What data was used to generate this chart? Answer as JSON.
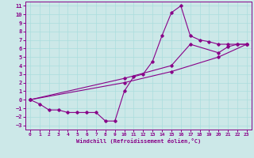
{
  "xlabel": "Windchill (Refroidissement éolien,°C)",
  "xlim": [
    -0.5,
    23.5
  ],
  "ylim": [
    -3.5,
    11.5
  ],
  "xticks": [
    0,
    1,
    2,
    3,
    4,
    5,
    6,
    7,
    8,
    9,
    10,
    11,
    12,
    13,
    14,
    15,
    16,
    17,
    18,
    19,
    20,
    21,
    22,
    23
  ],
  "yticks": [
    11,
    10,
    9,
    8,
    7,
    6,
    5,
    4,
    3,
    2,
    1,
    0,
    -1,
    -2,
    -3
  ],
  "bg_color": "#cce8e8",
  "line_color": "#880088",
  "grid_color": "#aadddd",
  "line1_x": [
    0,
    1,
    2,
    3,
    4,
    5,
    6,
    7,
    8,
    9,
    10,
    11,
    12,
    13,
    14,
    15,
    16,
    17,
    18,
    19,
    20,
    21,
    22,
    23
  ],
  "line1_y": [
    0,
    -0.5,
    -1.2,
    -1.2,
    -1.5,
    -1.5,
    -1.5,
    -1.5,
    -2.5,
    -2.5,
    1.0,
    2.7,
    3.0,
    4.5,
    7.5,
    10.2,
    11.0,
    7.5,
    7.0,
    6.8,
    6.5,
    6.5,
    6.5,
    6.5
  ],
  "line2_x": [
    0,
    10,
    15,
    17,
    20,
    21,
    22,
    23
  ],
  "line2_y": [
    0,
    2.5,
    4.0,
    6.5,
    5.5,
    6.2,
    6.5,
    6.5
  ],
  "line3_x": [
    0,
    10,
    15,
    20,
    23
  ],
  "line3_y": [
    0,
    2.0,
    3.3,
    5.0,
    6.5
  ],
  "marker": "D",
  "marker_size": 1.8,
  "linewidth": 0.8
}
